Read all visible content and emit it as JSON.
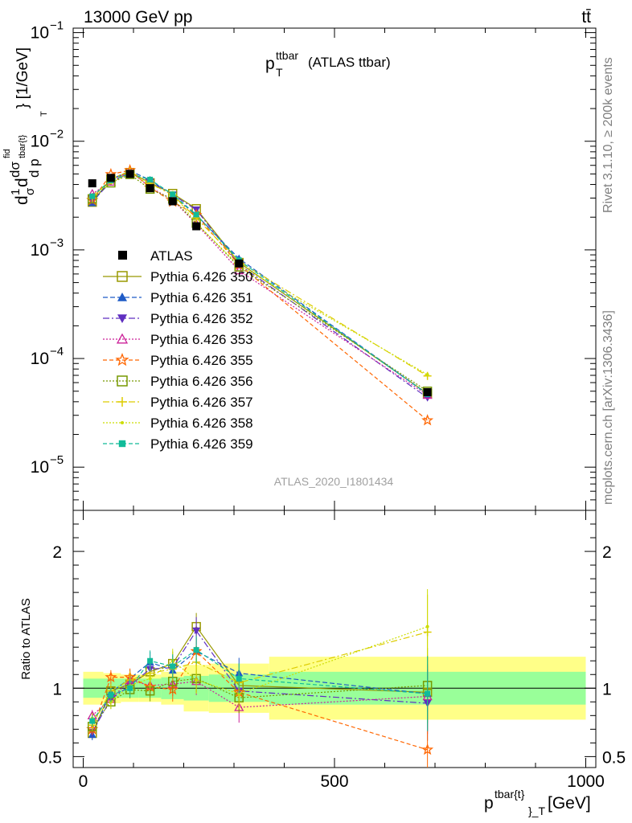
{
  "header": {
    "left": "13000 GeV pp",
    "right": "tt̄",
    "side_top": "Rivet 3.1.10, ≥ 200k events",
    "side_bottom": "mcplots.cern.ch [arXiv:1306.3436]"
  },
  "plot_title": {
    "main": "p",
    "sup": "ttbar",
    "sub": "T",
    "rest": "(ATLAS ttbar)"
  },
  "analysis_label": "ATLAS_2020_I1801434",
  "y_label": {
    "frac": "1",
    "sigma": "σ",
    "d1": "d",
    "dsigma": "dσ",
    "sup": "fid",
    "dsub": "tbar{t}",
    "dp": "d p",
    "T": "T",
    "unit": "} [1/GeV]",
    "prefix": "d"
  },
  "ratio_ylabel": "Ratio to ATLAS",
  "x_label": {
    "p": "p",
    "sup": "tbar{t}",
    "sub": "}_T",
    "unit": "[GeV]"
  },
  "colors": {
    "green_band": "#99ff99",
    "yellow_band": "#ffff88",
    "grey_text": "#808080"
  },
  "chart_data": {
    "type": "line",
    "x_axis": {
      "range": [
        -20,
        1020
      ],
      "ticks": [
        0,
        500,
        1000
      ],
      "tick_labels": [
        "0",
        "500",
        "1000"
      ]
    },
    "main_y_axis": {
      "scale": "log",
      "range": [
        4e-06,
        0.11
      ],
      "ticks": [
        1e-05,
        0.0001,
        0.001,
        0.01,
        0.1
      ],
      "tick_labels": [
        {
          "base": "10",
          "exp": "−5"
        },
        {
          "base": "10",
          "exp": "−4"
        },
        {
          "base": "10",
          "exp": "−3"
        },
        {
          "base": "10",
          "exp": "−2"
        },
        {
          "base": "10",
          "exp": "−1"
        }
      ]
    },
    "ratio_y_axis": {
      "range": [
        0.42,
        2.3
      ],
      "ticks": [
        0.5,
        1,
        2
      ],
      "tick_labels": [
        "0.5",
        "1",
        "2"
      ]
    },
    "bins": [
      {
        "lo": 0,
        "hi": 40
      },
      {
        "lo": 40,
        "hi": 75
      },
      {
        "lo": 75,
        "hi": 110
      },
      {
        "lo": 110,
        "hi": 155
      },
      {
        "lo": 155,
        "hi": 200
      },
      {
        "lo": 200,
        "hi": 250
      },
      {
        "lo": 250,
        "hi": 370
      },
      {
        "lo": 370,
        "hi": 1000
      }
    ],
    "x": [
      18,
      55,
      93,
      133,
      178,
      225,
      310,
      685
    ],
    "data": {
      "name": "ATLAS",
      "values": [
        0.0041,
        0.0046,
        0.005,
        0.0037,
        0.0028,
        0.00165,
        0.00075,
        4.9e-05
      ],
      "green_band": [
        0.07,
        0.07,
        0.07,
        0.07,
        0.08,
        0.09,
        0.1,
        0.12
      ],
      "yellow_band": [
        0.12,
        0.11,
        0.1,
        0.1,
        0.12,
        0.17,
        0.18,
        0.23
      ]
    },
    "series": [
      {
        "name": "Pythia 6.426 350",
        "color": "#999900",
        "marker": "open-square",
        "dash": "",
        "ratio": [
          0.67,
          0.98,
          1.03,
          1.12,
          1.18,
          1.45,
          1.02,
          0.97
        ]
      },
      {
        "name": "Pythia 6.426 351",
        "color": "#1f5bc6",
        "marker": "triangle-up",
        "dash": "6,3",
        "ratio": [
          0.66,
          0.97,
          1.07,
          1.19,
          1.13,
          1.27,
          1.11,
          0.96
        ]
      },
      {
        "name": "Pythia 6.426 352",
        "color": "#5f2fc0",
        "marker": "triangle-down",
        "dash": "8,3,2,3",
        "ratio": [
          0.68,
          0.92,
          1.02,
          1.14,
          1.15,
          1.42,
          0.98,
          0.89
        ]
      },
      {
        "name": "Pythia 6.426 353",
        "color": "#cc2299",
        "marker": "open-triangle",
        "dash": "2,2",
        "ratio": [
          0.8,
          0.92,
          1.06,
          1.02,
          1.03,
          1.05,
          0.86,
          0.94
        ]
      },
      {
        "name": "Pythia 6.426 355",
        "color": "#ff6600",
        "marker": "open-star",
        "dash": "5,3",
        "ratio": [
          0.7,
          1.08,
          1.08,
          1.01,
          0.99,
          1.27,
          0.97,
          0.55
        ]
      },
      {
        "name": "Pythia 6.426 356",
        "color": "#779900",
        "marker": "open-square",
        "dash": "2,2",
        "ratio": [
          0.72,
          0.9,
          0.99,
          0.98,
          1.05,
          1.07,
          0.93,
          1.02
        ]
      },
      {
        "name": "Pythia 6.426 357",
        "color": "#ddcc00",
        "marker": "cross",
        "dash": "8,3,2,3",
        "ratio": [
          0.73,
          0.98,
          1.06,
          1.11,
          1.14,
          1.19,
          1.04,
          1.41
        ]
      },
      {
        "name": "Pythia 6.426 358",
        "color": "#ccdd00",
        "marker": "dot",
        "dash": "2,2",
        "ratio": [
          0.78,
          0.9,
          1.02,
          1.07,
          1.2,
          1.06,
          0.96,
          1.45
        ]
      },
      {
        "name": "Pythia 6.426 359",
        "color": "#11bb99",
        "marker": "square",
        "dash": "5,3",
        "ratio": [
          0.76,
          0.95,
          1.0,
          1.2,
          1.16,
          1.28,
          1.07,
          0.96
        ]
      }
    ]
  }
}
